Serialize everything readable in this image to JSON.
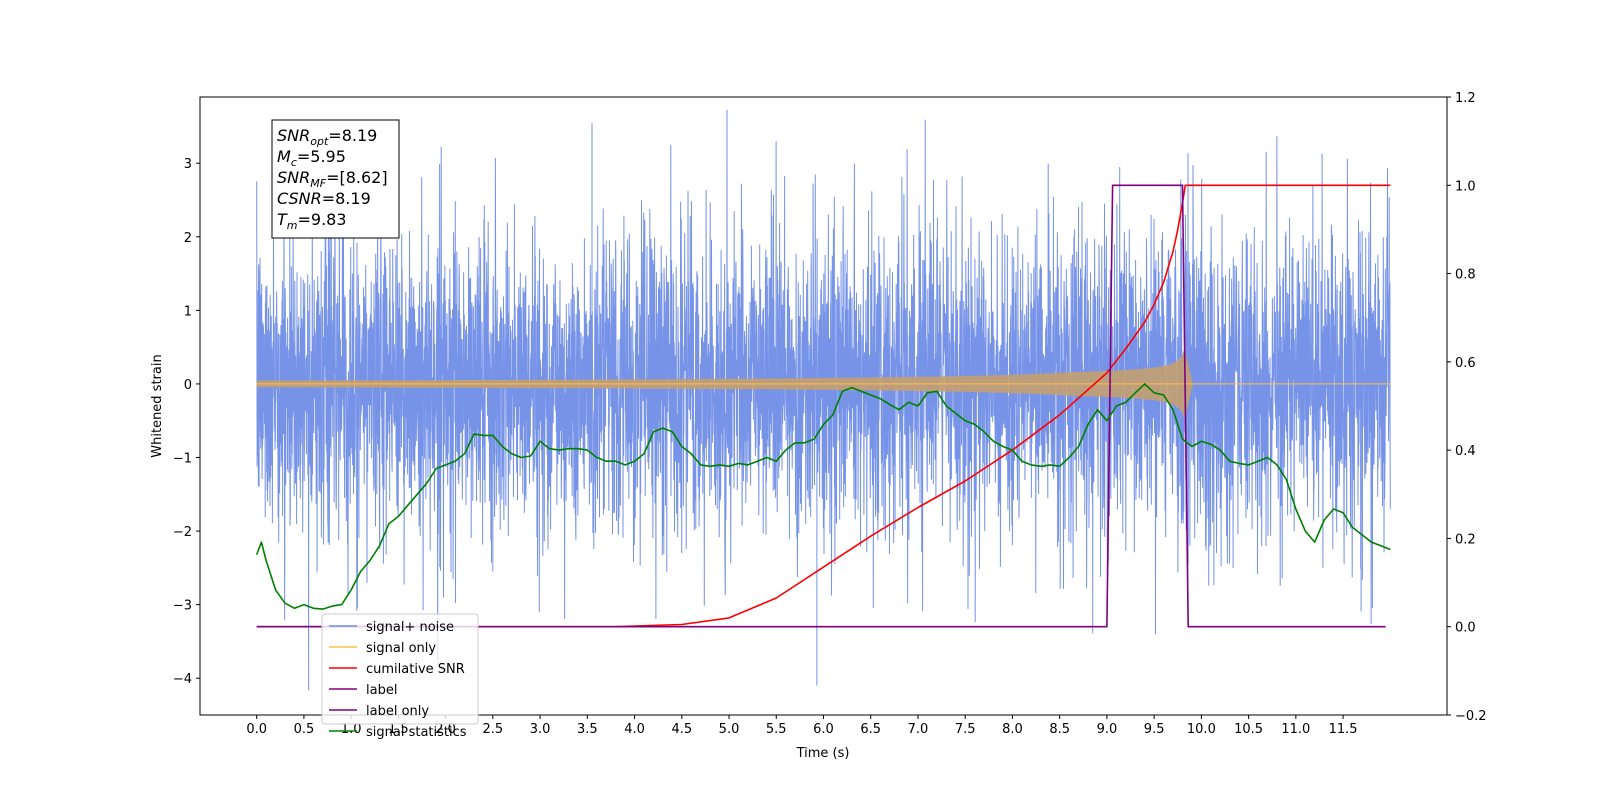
{
  "chart_data": {
    "type": "line",
    "title": "",
    "xlabel": "Time (s)",
    "ylabel": "Whitened strain",
    "y2label": "",
    "xlim": [
      -0.6,
      12.6
    ],
    "ylim": [
      -4.5,
      3.9
    ],
    "y2lim": [
      -0.2,
      1.2
    ],
    "grid": false,
    "x_ticks": [
      0.0,
      0.5,
      1.0,
      1.5,
      2.0,
      2.5,
      3.0,
      3.5,
      4.0,
      4.5,
      5.0,
      5.5,
      6.0,
      6.5,
      7.0,
      7.5,
      8.0,
      8.5,
      9.0,
      9.5,
      10.0,
      10.5,
      11.0,
      11.5
    ],
    "x_tick_labels": [
      "0.0",
      "0.5",
      "1.0",
      "1.5",
      "2.0",
      "2.5",
      "3.0",
      "3.5",
      "4.0",
      "4.5",
      "5.0",
      "5.5",
      "6.0",
      "6.5",
      "7.0",
      "7.5",
      "8.0",
      "8.5",
      "9.0",
      "9.5",
      "10.0",
      "10.5",
      "11.0",
      "11.5"
    ],
    "y_ticks": [
      -4,
      -3,
      -2,
      -1,
      0,
      1,
      2,
      3
    ],
    "y_tick_labels": [
      "−4",
      "−3",
      "−2",
      "−1",
      "0",
      "1",
      "2",
      "3"
    ],
    "y2_ticks": [
      -0.2,
      0.0,
      0.2,
      0.4,
      0.6,
      0.8,
      1.0,
      1.2
    ],
    "y2_tick_labels": [
      "−0.2",
      "0.0",
      "0.2",
      "0.4",
      "0.6",
      "0.8",
      "1.0",
      "1.2"
    ],
    "legend_placement": "lower-left",
    "legend": [
      {
        "label": "signal+ noise",
        "color": "#6f8de6"
      },
      {
        "label": "signal only",
        "color": "#ffbf4d"
      },
      {
        "label": "cumilative SNR",
        "color": "#ff0000"
      },
      {
        "label": "label",
        "color": "#800080"
      },
      {
        "label": "label only",
        "color": "#800080"
      },
      {
        "label": "signal statistics",
        "color": "#008000"
      }
    ],
    "annotation": {
      "lines": [
        {
          "sym": "SNR",
          "sub": "opt",
          "rest": "=8.19"
        },
        {
          "sym": "M",
          "sub": "c",
          "rest": "=5.95"
        },
        {
          "sym": "SNR",
          "sub": "MF",
          "rest": "=[8.62]"
        },
        {
          "sym": "CSNR",
          "sub": "",
          "rest": "=8.19"
        },
        {
          "sym": "T",
          "sub": "m",
          "rest": "=9.83"
        }
      ]
    },
    "series": [
      {
        "name": "signal+ noise",
        "axis": "left",
        "color": "#6f8de6",
        "kind": "noise",
        "x_range": [
          0.0,
          12.0
        ],
        "band": [
          -1.6,
          1.6
        ],
        "max": 3.55,
        "min": -4.1
      },
      {
        "name": "signal only",
        "axis": "left",
        "color": "#ffbf4d",
        "kind": "chirp",
        "x_range": [
          0.0,
          12.0
        ],
        "t_merger": 9.83,
        "peak_amp": 0.45
      },
      {
        "name": "cumilative SNR",
        "axis": "right",
        "color": "#ff0000",
        "x": [
          0.0,
          3.8,
          4.5,
          5.0,
          5.5,
          6.0,
          6.5,
          7.0,
          7.5,
          8.0,
          8.5,
          9.0,
          9.2,
          9.4,
          9.5,
          9.6,
          9.7,
          9.75,
          9.8,
          9.83,
          12.0
        ],
        "y": [
          0.0,
          0.0,
          0.005,
          0.02,
          0.065,
          0.135,
          0.205,
          0.27,
          0.33,
          0.4,
          0.48,
          0.575,
          0.63,
          0.69,
          0.73,
          0.78,
          0.85,
          0.9,
          0.96,
          1.0,
          1.0
        ]
      },
      {
        "name": "label",
        "axis": "right",
        "color": "#800080",
        "x": [
          0.0,
          9.0,
          9.06,
          9.8,
          9.86,
          11.95
        ],
        "y": [
          0.0,
          0.0,
          1.0,
          1.0,
          0.0,
          0.0
        ]
      },
      {
        "name": "signal statistics",
        "axis": "left",
        "color": "#008000",
        "x": [
          0.0,
          0.05,
          0.1,
          0.2,
          0.3,
          0.4,
          0.5,
          0.6,
          0.7,
          0.8,
          0.9,
          1.0,
          1.1,
          1.2,
          1.3,
          1.4,
          1.5,
          1.6,
          1.7,
          1.8,
          1.9,
          2.0,
          2.1,
          2.2,
          2.3,
          2.4,
          2.5,
          2.6,
          2.7,
          2.8,
          2.9,
          3.0,
          3.1,
          3.2,
          3.3,
          3.4,
          3.5,
          3.6,
          3.7,
          3.8,
          3.9,
          4.0,
          4.1,
          4.2,
          4.3,
          4.4,
          4.5,
          4.6,
          4.7,
          4.8,
          4.9,
          5.0,
          5.1,
          5.2,
          5.3,
          5.4,
          5.5,
          5.6,
          5.7,
          5.8,
          5.9,
          6.0,
          6.1,
          6.2,
          6.3,
          6.4,
          6.5,
          6.6,
          6.7,
          6.8,
          6.9,
          7.0,
          7.1,
          7.2,
          7.3,
          7.4,
          7.5,
          7.6,
          7.7,
          7.8,
          7.9,
          8.0,
          8.1,
          8.2,
          8.3,
          8.4,
          8.5,
          8.6,
          8.7,
          8.8,
          8.9,
          9.0,
          9.1,
          9.2,
          9.3,
          9.4,
          9.5,
          9.6,
          9.7,
          9.8,
          9.9,
          10.0,
          10.1,
          10.2,
          10.3,
          10.4,
          10.5,
          10.6,
          10.7,
          10.8,
          10.9,
          11.0,
          11.1,
          11.2,
          11.3,
          11.4,
          11.5,
          11.6,
          11.7,
          11.8,
          11.9,
          12.0
        ],
        "y": [
          -2.32,
          -2.15,
          -2.4,
          -2.8,
          -2.98,
          -3.05,
          -3.0,
          -3.05,
          -3.06,
          -3.02,
          -3.0,
          -2.8,
          -2.55,
          -2.4,
          -2.2,
          -1.9,
          -1.8,
          -1.65,
          -1.5,
          -1.35,
          -1.15,
          -1.1,
          -1.05,
          -0.95,
          -0.68,
          -0.7,
          -0.7,
          -0.85,
          -0.95,
          -1.0,
          -0.98,
          -0.78,
          -0.88,
          -0.9,
          -0.88,
          -0.88,
          -0.9,
          -1.0,
          -1.05,
          -1.05,
          -1.1,
          -1.05,
          -0.95,
          -0.65,
          -0.6,
          -0.65,
          -0.85,
          -0.95,
          -1.1,
          -1.12,
          -1.1,
          -1.12,
          -1.08,
          -1.1,
          -1.05,
          -1.0,
          -1.05,
          -0.9,
          -0.8,
          -0.8,
          -0.75,
          -0.55,
          -0.42,
          -0.1,
          -0.05,
          -0.1,
          -0.15,
          -0.2,
          -0.28,
          -0.35,
          -0.25,
          -0.3,
          -0.12,
          -0.1,
          -0.3,
          -0.4,
          -0.5,
          -0.55,
          -0.65,
          -0.78,
          -0.85,
          -0.9,
          -1.05,
          -1.1,
          -1.12,
          -1.1,
          -1.12,
          -1.0,
          -0.85,
          -0.55,
          -0.35,
          -0.5,
          -0.3,
          -0.25,
          -0.12,
          0.0,
          -0.12,
          -0.15,
          -0.35,
          -0.75,
          -0.85,
          -0.78,
          -0.82,
          -0.9,
          -1.05,
          -1.08,
          -1.1,
          -1.05,
          -1.0,
          -1.1,
          -1.3,
          -1.7,
          -2.0,
          -2.15,
          -1.85,
          -1.7,
          -1.75,
          -1.95,
          -2.05,
          -2.15,
          -2.2,
          -2.25
        ]
      }
    ]
  }
}
